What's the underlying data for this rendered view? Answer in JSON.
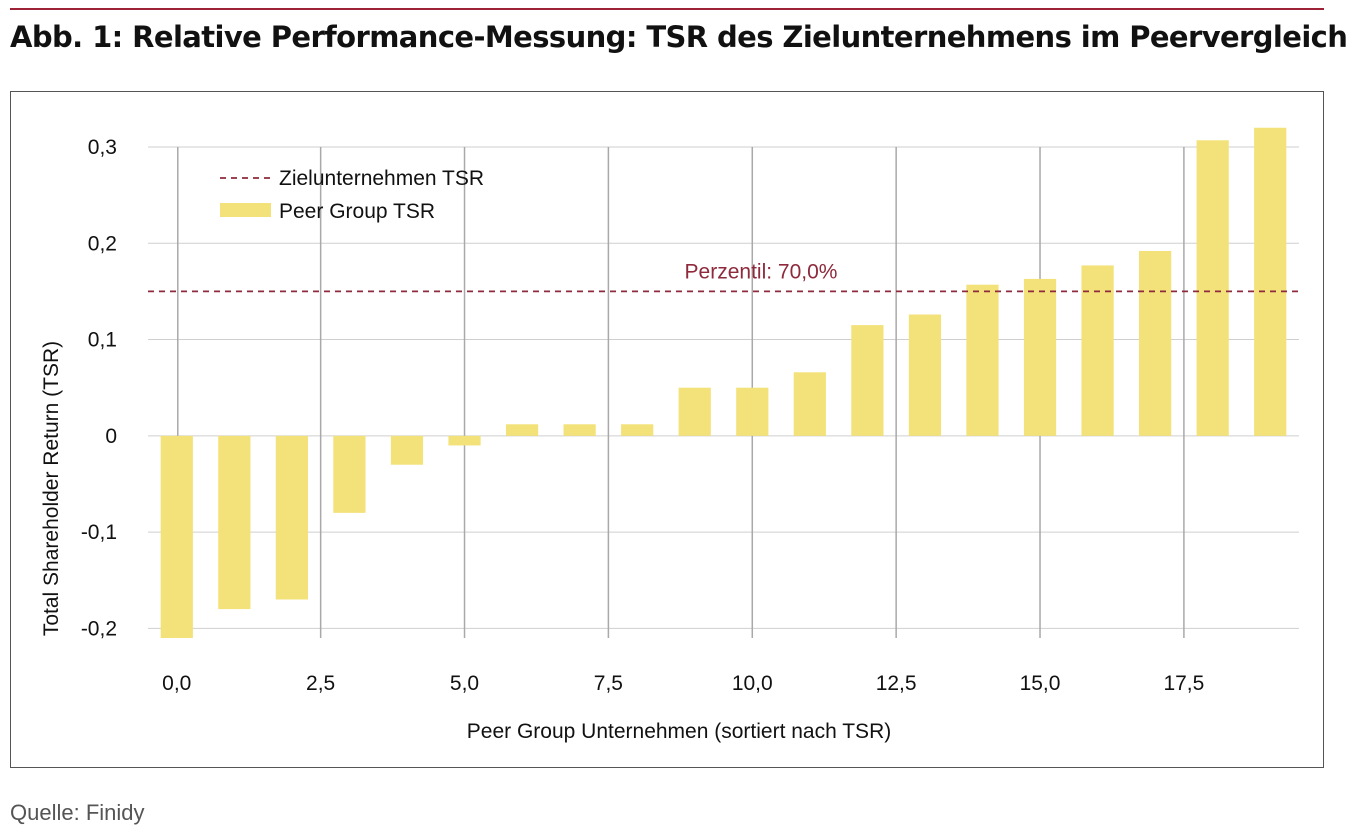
{
  "figure": {
    "title": "Abb. 1: Relative Performance-Messung: TSR des Zielunternehmens im Peervergleich",
    "source": "Quelle: Finidy"
  },
  "colors": {
    "accent_rule": "#9d2235",
    "bar": "#f3e27a",
    "target_line": "#8e2a3c",
    "grid": "#cfcfcf",
    "vgrid": "#a9a9a9"
  },
  "chart_data": {
    "type": "bar",
    "title": "",
    "xlabel": "Peer Group Unternehmen  (sortiert nach TSR)",
    "ylabel": "Total Shareholder Return (TSR)",
    "xlim": [
      -0.5,
      19.5
    ],
    "ylim": [
      -0.21,
      0.3
    ],
    "x": [
      0,
      1,
      2,
      3,
      4,
      5,
      6,
      7,
      8,
      9,
      10,
      11,
      12,
      13,
      14,
      15,
      16,
      17,
      18,
      19
    ],
    "series": [
      {
        "name": "Peer Group TSR",
        "values": [
          -0.21,
          -0.18,
          -0.17,
          -0.08,
          -0.03,
          -0.01,
          0.012,
          0.012,
          0.012,
          0.05,
          0.05,
          0.066,
          0.115,
          0.126,
          0.157,
          0.163,
          0.177,
          0.192,
          0.307,
          0.32
        ]
      }
    ],
    "target": {
      "name": "Zielunternehmen TSR",
      "value": 0.15
    },
    "annotation": "Perzentil: 70,0%",
    "x_ticks": [
      {
        "value": 0,
        "label": "0,0"
      },
      {
        "value": 2.5,
        "label": "2,5"
      },
      {
        "value": 5,
        "label": "5,0"
      },
      {
        "value": 7.5,
        "label": "7,5"
      },
      {
        "value": 10,
        "label": "10,0"
      },
      {
        "value": 12.5,
        "label": "12,5"
      },
      {
        "value": 15,
        "label": "15,0"
      },
      {
        "value": 17.5,
        "label": "17,5"
      }
    ],
    "y_ticks": [
      {
        "value": 0.3,
        "label": "0,3"
      },
      {
        "value": 0.2,
        "label": "0,2"
      },
      {
        "value": 0.1,
        "label": "0,1"
      },
      {
        "value": 0,
        "label": "0"
      },
      {
        "value": -0.1,
        "label": "-0,1"
      },
      {
        "value": -0.2,
        "label": "-0,2"
      }
    ],
    "grid": true,
    "legend_position": "top-left"
  }
}
